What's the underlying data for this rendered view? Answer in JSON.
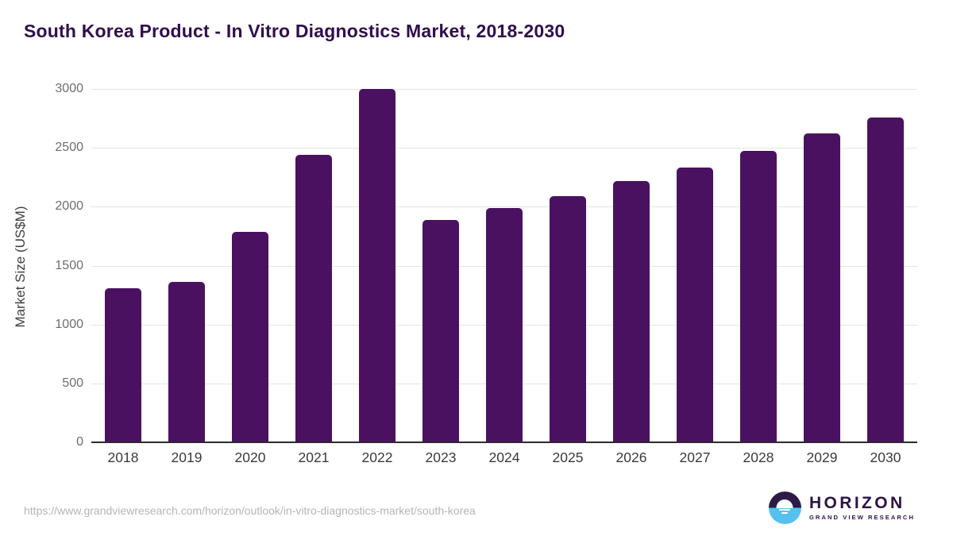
{
  "header": {
    "title": "South Korea Product - In Vitro Diagnostics Market, 2018-2030"
  },
  "footer": {
    "source_url": "https://www.grandviewresearch.com/horizon/outlook/in-vitro-diagnostics-market/south-korea",
    "logo": {
      "icon": "horizon-sun-over-water-icon",
      "name": "HORIZON",
      "subtitle": "GRAND VIEW RESEARCH"
    }
  },
  "colors": {
    "bar": "#4a1161",
    "title_text": "#300e4e",
    "gridline": "#e4e4e4",
    "axis_line": "#2b2b2b",
    "logo_purple": "#2e1a47",
    "logo_blue": "#56c1ef"
  },
  "chart_data": {
    "type": "bar",
    "title": "South Korea Product - In Vitro Diagnostics Market, 2018-2030",
    "categories": [
      "2018",
      "2019",
      "2020",
      "2021",
      "2022",
      "2023",
      "2024",
      "2025",
      "2026",
      "2027",
      "2028",
      "2029",
      "2030"
    ],
    "values": [
      1305,
      1365,
      1785,
      2440,
      3000,
      1890,
      1990,
      2090,
      2215,
      2335,
      2475,
      2620,
      2760
    ],
    "xlabel": "",
    "ylabel": "Market Size (US$M)",
    "ylim": [
      0,
      3000
    ],
    "yticks": [
      0,
      500,
      1000,
      1500,
      2000,
      2500,
      3000
    ],
    "grid": true,
    "legend": false,
    "bar_color": "#4a1161"
  }
}
